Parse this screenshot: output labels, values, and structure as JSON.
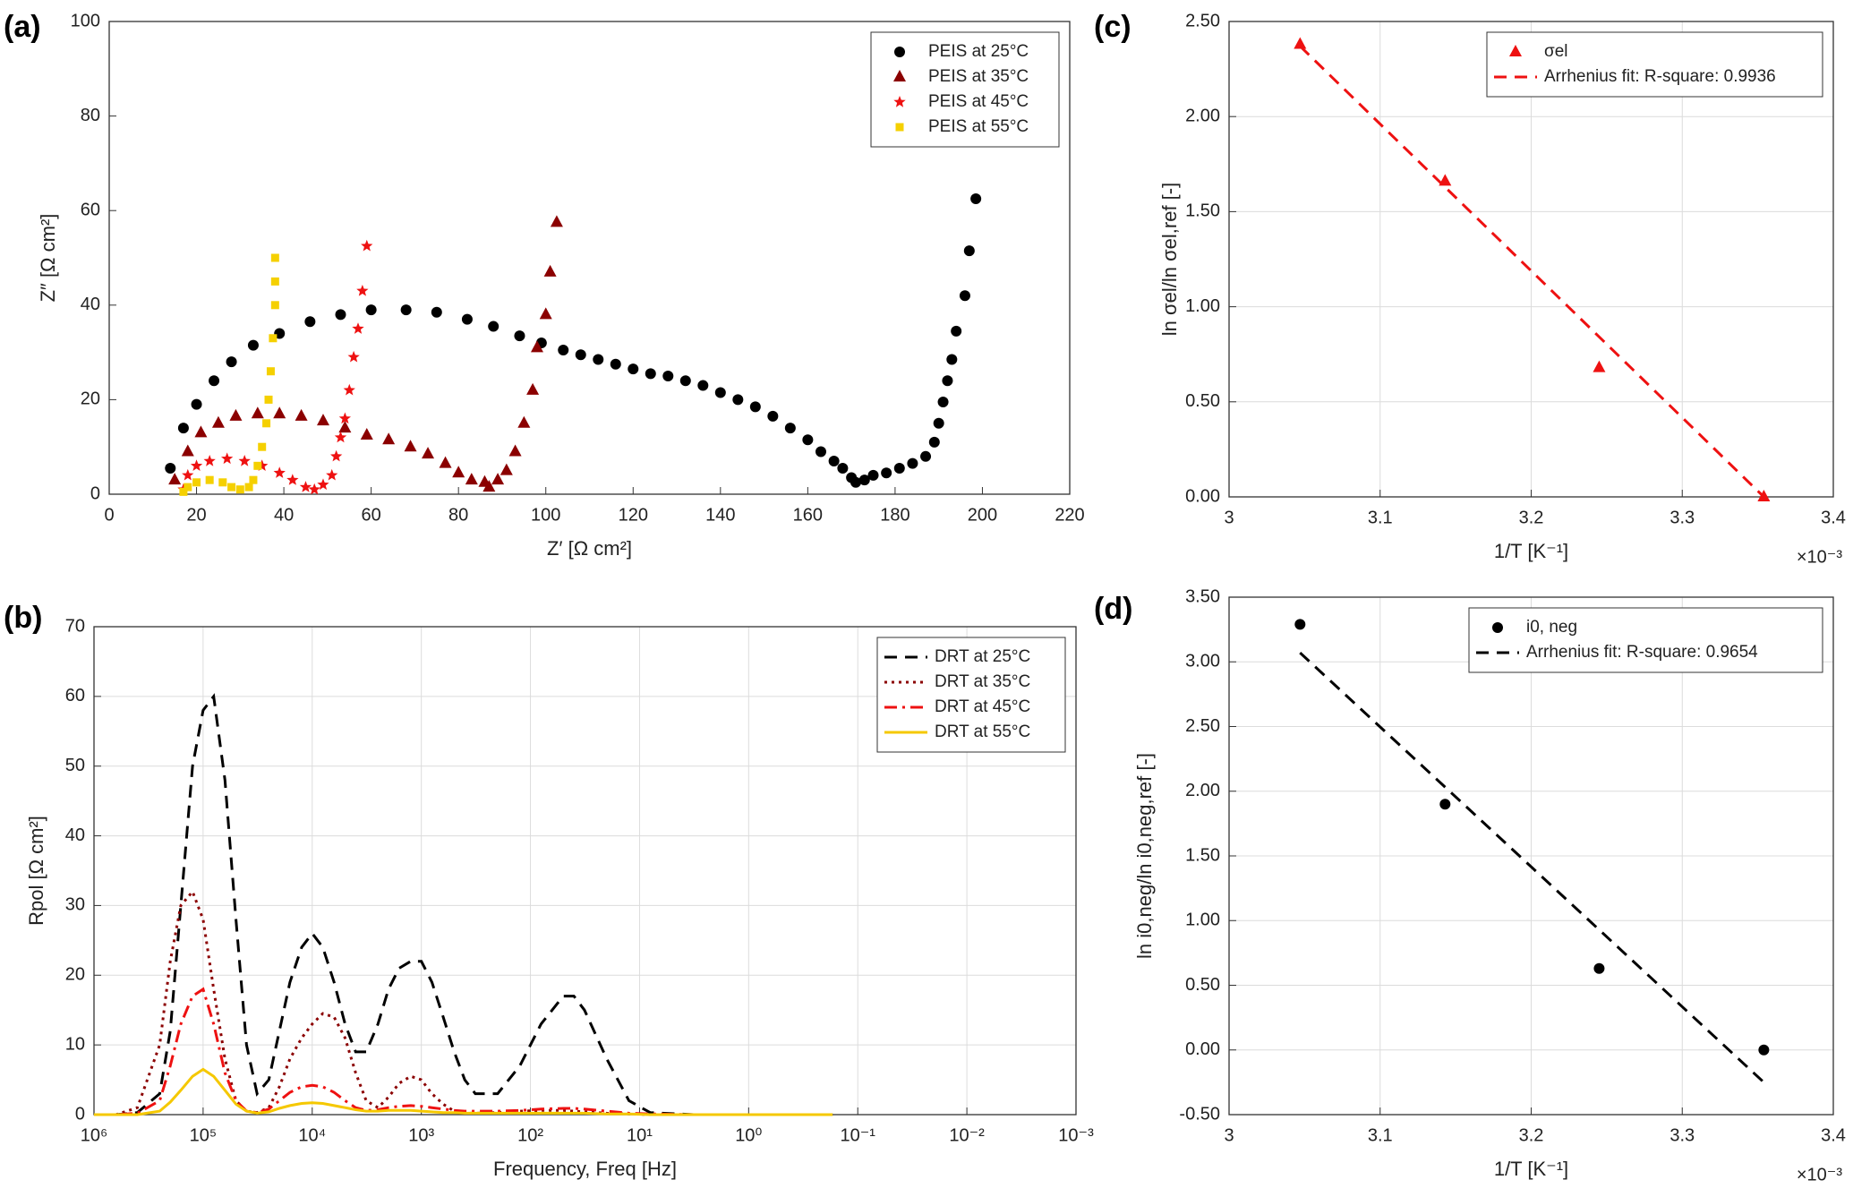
{
  "chart_data": [
    {
      "type": "scatter",
      "panel_label": "(a)",
      "xlabel": "Z′  [Ω cm²]",
      "ylabel": "Z″  [Ω cm²]",
      "xlim": [
        0,
        220
      ],
      "ylim": [
        0,
        100
      ],
      "xticks": [
        0,
        20,
        40,
        60,
        80,
        100,
        120,
        140,
        160,
        180,
        200,
        220
      ],
      "yticks": [
        0,
        20,
        40,
        60,
        80,
        100
      ],
      "grid": false,
      "legend": "upper right",
      "series": [
        {
          "name": "PEIS at 25°C",
          "color": "#000000",
          "marker": "circle",
          "x": [
            14,
            17,
            20,
            24,
            28,
            33,
            39,
            46,
            53,
            60,
            68,
            75,
            82,
            88,
            94,
            99,
            104,
            108,
            112,
            116,
            120,
            124,
            128,
            132,
            136,
            140,
            144,
            148,
            152,
            156,
            160,
            163,
            166,
            168,
            170,
            171,
            173,
            175,
            178,
            181,
            184,
            187,
            189,
            190,
            191,
            192,
            193,
            194,
            196,
            197,
            198.5
          ],
          "values": [
            5.5,
            14,
            19,
            24,
            28,
            31.5,
            34,
            36.5,
            38,
            39,
            39,
            38.5,
            37,
            35.5,
            33.5,
            32,
            30.5,
            29.5,
            28.5,
            27.5,
            26.5,
            25.5,
            25,
            24,
            23,
            21.5,
            20,
            18.5,
            16.5,
            14,
            11.5,
            9,
            7,
            5.5,
            3.5,
            2.5,
            3,
            4,
            4.5,
            5.5,
            6.5,
            8,
            11,
            15,
            19.5,
            24,
            28.5,
            34.5,
            42,
            51.5,
            62.5
          ]
        },
        {
          "name": "PEIS at 35°C",
          "color": "#8b0000",
          "marker": "triangle",
          "x": [
            15,
            18,
            21,
            25,
            29,
            34,
            39,
            44,
            49,
            54,
            59,
            64,
            69,
            73,
            77,
            80,
            83,
            86,
            87,
            89,
            91,
            93,
            95,
            97,
            98,
            100,
            101,
            102.5
          ],
          "values": [
            3,
            9,
            13,
            15,
            16.5,
            17,
            17,
            16.5,
            15.5,
            14,
            12.5,
            11.5,
            10,
            8.5,
            6.5,
            4.5,
            3,
            2.5,
            1.5,
            3,
            5,
            9,
            15,
            22,
            31,
            38,
            47,
            57.5
          ]
        },
        {
          "name": "PEIS at 45°C",
          "color": "#ee1111",
          "marker": "star",
          "x": [
            17,
            18,
            20,
            23,
            27,
            31,
            35,
            39,
            42,
            45,
            47,
            49,
            51,
            52,
            53,
            54,
            55,
            56,
            57,
            58,
            59
          ],
          "values": [
            1,
            4,
            6,
            7,
            7.5,
            7,
            6,
            4.5,
            3,
            1.5,
            1,
            2,
            4,
            8,
            12,
            16,
            22,
            29,
            35,
            43,
            52.5
          ]
        },
        {
          "name": "PEIS at 55°C",
          "color": "#f5d000",
          "marker": "square",
          "x": [
            17,
            18,
            20,
            23,
            26,
            28,
            30,
            32,
            33,
            34,
            35,
            36,
            36.5,
            37,
            37.5,
            38,
            38,
            38
          ],
          "values": [
            0.5,
            1.5,
            2.5,
            3,
            2.5,
            1.5,
            1,
            1.5,
            3,
            6,
            10,
            15,
            20,
            26,
            33,
            40,
            45,
            50
          ]
        }
      ]
    },
    {
      "type": "line",
      "panel_label": "(b)",
      "xlabel": "Frequency, Freq  [Hz]",
      "ylabel": "Rpol  [Ω cm²]",
      "log_x": true,
      "xlim": [
        1000000,
        0.001
      ],
      "ylim": [
        0,
        70
      ],
      "xticks": [
        {
          "value": 1000000,
          "label": "10⁶"
        },
        {
          "value": 100000,
          "label": "10⁵"
        },
        {
          "value": 10000,
          "label": "10⁴"
        },
        {
          "value": 1000,
          "label": "10³"
        },
        {
          "value": 100,
          "label": "10²"
        },
        {
          "value": 10,
          "label": "10¹"
        },
        {
          "value": 1,
          "label": "10⁰"
        },
        {
          "value": 0.1,
          "label": "10⁻¹"
        },
        {
          "value": 0.01,
          "label": "10⁻²"
        },
        {
          "value": 0.001,
          "label": "10⁻³"
        }
      ],
      "yticks": [
        0,
        10,
        20,
        30,
        40,
        50,
        60,
        70
      ],
      "grid": true,
      "legend": "upper right",
      "x": [
        1000000,
        630000,
        400000,
        250000,
        200000,
        160000,
        125000,
        100000,
        80000,
        63000,
        50000,
        40000,
        32000,
        25000,
        20000,
        16000,
        12500,
        10000,
        8000,
        6300,
        5000,
        4000,
        3200,
        2500,
        2000,
        1600,
        1250,
        1000,
        800,
        630,
        500,
        400,
        320,
        200,
        125,
        80,
        50,
        40,
        32,
        20,
        12.5,
        8,
        3.2,
        1,
        0.17
      ],
      "series": [
        {
          "name": "DRT at 25°C",
          "color": "#000000",
          "line_style": "dashed",
          "values": [
            0,
            0,
            0.3,
            3,
            12,
            30,
            50,
            58,
            60,
            48,
            28,
            10,
            3,
            5,
            12,
            19,
            24,
            26,
            24,
            19,
            13,
            9,
            9,
            13,
            18,
            21,
            22,
            22,
            19,
            14,
            9,
            5,
            3,
            3,
            7,
            13,
            17,
            17,
            15,
            8,
            2,
            0.3,
            0,
            0,
            0
          ]
        },
        {
          "name": "DRT at 35°C",
          "color": "#8b0000",
          "line_style": "dotted",
          "values": [
            0,
            0,
            1,
            10,
            22,
            30,
            32,
            28,
            18,
            8,
            2,
            0.5,
            0.3,
            1,
            4,
            8,
            11,
            13,
            14.5,
            14,
            11,
            6,
            2,
            1,
            2.5,
            4.5,
            5.5,
            5,
            3,
            1.5,
            0.5,
            0.2,
            0.2,
            0.3,
            0.5,
            0.6,
            0.6,
            0.5,
            0.4,
            0.2,
            0.1,
            0,
            0,
            0,
            0
          ]
        },
        {
          "name": "DRT at 45°C",
          "color": "#ee1111",
          "line_style": "dashdot",
          "values": [
            0,
            0,
            0.2,
            2,
            7,
            13,
            17,
            18,
            13,
            6,
            2,
            0.5,
            0.3,
            0.8,
            2,
            3.2,
            4,
            4.2,
            4,
            3.2,
            2,
            1,
            0.6,
            0.7,
            1,
            1.2,
            1.3,
            1.2,
            1,
            0.8,
            0.6,
            0.5,
            0.5,
            0.5,
            0.6,
            0.8,
            0.9,
            0.9,
            0.8,
            0.5,
            0.2,
            0.1,
            0,
            0,
            0
          ]
        },
        {
          "name": "DRT at 55°C",
          "color": "#f5c800",
          "line_style": "solid",
          "values": [
            0,
            0,
            0,
            0.5,
            1.8,
            3.5,
            5.5,
            6.5,
            5.5,
            3.5,
            1.5,
            0.5,
            0.2,
            0.4,
            0.9,
            1.3,
            1.6,
            1.7,
            1.6,
            1.3,
            1,
            0.7,
            0.5,
            0.5,
            0.6,
            0.6,
            0.6,
            0.5,
            0.4,
            0.3,
            0.3,
            0.2,
            0.2,
            0.2,
            0.2,
            0.2,
            0.2,
            0.2,
            0.2,
            0.1,
            0.1,
            0,
            0,
            0,
            0
          ]
        }
      ]
    },
    {
      "type": "scatter",
      "panel_label": "(c)",
      "xlabel": "1/T  [K⁻¹]",
      "ylabel": "ln σel/ln σel,ref  [-]",
      "x_multiplier": "×10⁻³",
      "xlim": [
        3,
        3.4
      ],
      "ylim": [
        0,
        2.5
      ],
      "xticks": [
        3,
        3.1,
        3.2,
        3.3,
        3.4
      ],
      "yticks": [
        {
          "value": 0,
          "label": "0.00"
        },
        {
          "value": 0.5,
          "label": "0.50"
        },
        {
          "value": 1,
          "label": "1.00"
        },
        {
          "value": 1.5,
          "label": "1.50"
        },
        {
          "value": 2,
          "label": "2.00"
        },
        {
          "value": 2.5,
          "label": "2.50"
        }
      ],
      "grid": true,
      "legend": "upper right",
      "series": [
        {
          "name": "σel",
          "color": "#ee1111",
          "marker": "triangle",
          "x": [
            3.047,
            3.143,
            3.245,
            3.354
          ],
          "values": [
            2.38,
            1.66,
            0.68,
            0.0
          ]
        },
        {
          "name": "Arrhenius fit: R-square: 0.9936",
          "color": "#ee1111",
          "line_style": "dashed",
          "x": [
            3.047,
            3.354
          ],
          "values": [
            2.37,
            0.0
          ]
        }
      ]
    },
    {
      "type": "scatter",
      "panel_label": "(d)",
      "xlabel": "1/T  [K⁻¹]",
      "ylabel": "ln i0,neg/ln i0,neg,ref  [-]",
      "x_multiplier": "×10⁻³",
      "xlim": [
        3,
        3.4
      ],
      "ylim": [
        -0.5,
        3.5
      ],
      "xticks": [
        3,
        3.1,
        3.2,
        3.3,
        3.4
      ],
      "yticks": [
        {
          "value": -0.5,
          "label": "-0.50"
        },
        {
          "value": 0,
          "label": "0.00"
        },
        {
          "value": 0.5,
          "label": "0.50"
        },
        {
          "value": 1,
          "label": "1.00"
        },
        {
          "value": 1.5,
          "label": "1.50"
        },
        {
          "value": 2,
          "label": "2.00"
        },
        {
          "value": 2.5,
          "label": "2.50"
        },
        {
          "value": 3,
          "label": "3.00"
        },
        {
          "value": 3.5,
          "label": "3.50"
        }
      ],
      "grid": true,
      "legend": "upper right",
      "series": [
        {
          "name": "i0, neg",
          "color": "#000000",
          "marker": "circle",
          "x": [
            3.047,
            3.143,
            3.245,
            3.354
          ],
          "values": [
            3.29,
            1.9,
            0.63,
            0.0
          ]
        },
        {
          "name": "Arrhenius fit: R-square: 0.9654",
          "color": "#000000",
          "line_style": "dashed",
          "x": [
            3.047,
            3.354
          ],
          "values": [
            3.07,
            -0.25
          ]
        }
      ]
    }
  ]
}
